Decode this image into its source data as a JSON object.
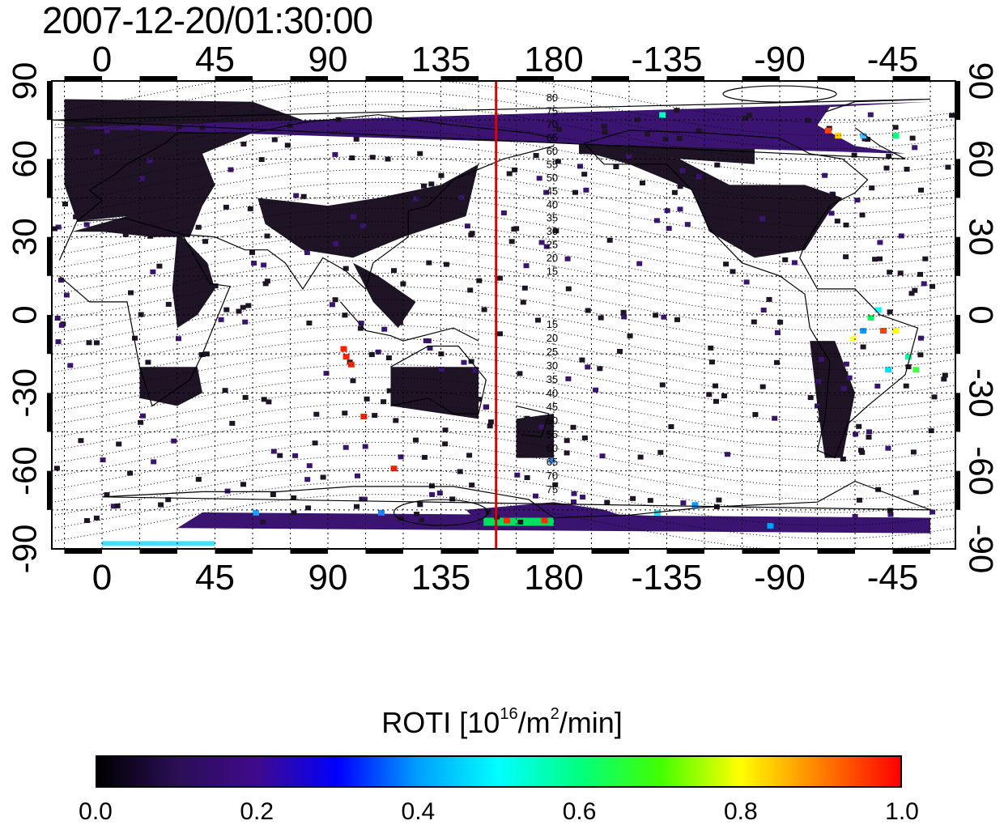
{
  "title": "2007-12-20/01:30:00",
  "map": {
    "x_ticks_top": [
      "0",
      "45",
      "90",
      "135",
      "180",
      "-135",
      "-90",
      "-45"
    ],
    "x_ticks_bottom": [
      "0",
      "45",
      "90",
      "135",
      "180",
      "-135",
      "-90",
      "-45"
    ],
    "y_ticks_left": [
      "90",
      "60",
      "30",
      "0",
      "-30",
      "-60",
      "-90"
    ],
    "y_ticks_right": [
      "90",
      "60",
      "30",
      "0",
      "-30",
      "-60",
      "-90"
    ],
    "lon_range": [
      -20,
      340
    ],
    "lat_range": [
      -90,
      90
    ],
    "red_meridian_lon": 157,
    "grid": "dotted",
    "contour_labels_north": [
      "80",
      "75",
      "70",
      "65",
      "60",
      "55",
      "50",
      "45",
      "40",
      "35",
      "30",
      "25",
      "20",
      "15"
    ],
    "contour_labels_south": [
      "15",
      "20",
      "25",
      "30",
      "35",
      "40",
      "45",
      "50",
      "55",
      "60",
      "65",
      "70",
      "75"
    ]
  },
  "colorbar": {
    "title_prefix": "ROTI  [10",
    "title_sup1": "16",
    "title_mid": "/m",
    "title_sup2": "2",
    "title_suffix": "/min]",
    "ticks": [
      "0.0",
      "0.2",
      "0.4",
      "0.6",
      "0.8",
      "1.0"
    ],
    "range": [
      0.0,
      1.0
    ],
    "colors": [
      "#000000",
      "#2a0f55",
      "#3f0a8c",
      "#0000ff",
      "#00a0ff",
      "#00ffff",
      "#00ff80",
      "#40ff00",
      "#ffff00",
      "#ff8000",
      "#ff0000"
    ]
  },
  "colors": {
    "red_line": "#e00000",
    "data_dark": "#1f1426",
    "data_purple": "#3a1470"
  }
}
